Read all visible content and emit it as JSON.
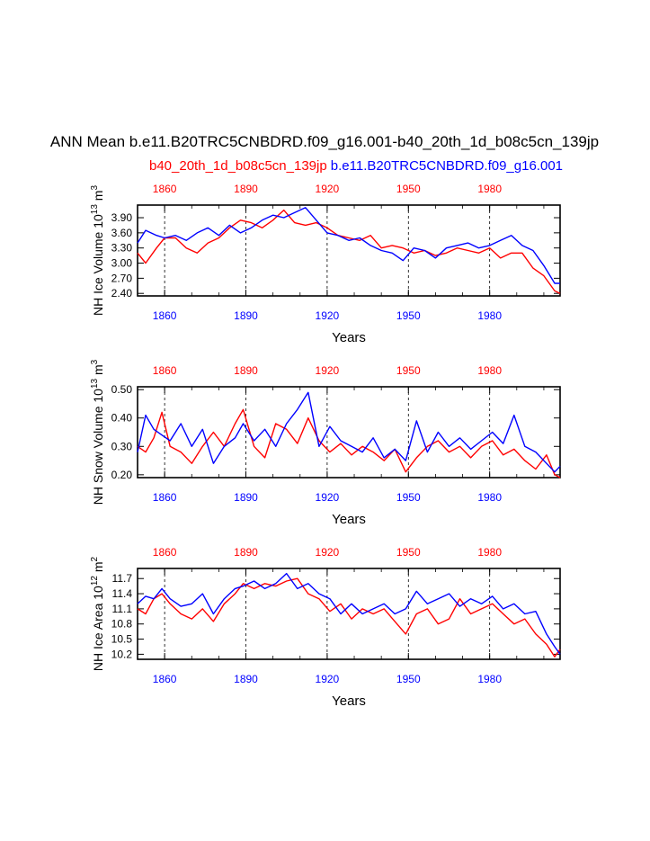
{
  "title": "ANN Mean b.e11.B20TRC5CNBDRD.f09_g16.001-b40_20th_1d_b08c5cn_139jp",
  "legend": {
    "red_label": "b40_20th_1d_b08c5cn_139jp",
    "blue_label": "b.e11.B20TRC5CNBDRD.f09_g16.001"
  },
  "colors": {
    "red": "#ff0000",
    "blue": "#0000ff"
  },
  "chart_data": [
    {
      "type": "line",
      "ylabel": "NH Ice Volume 10",
      "ylabel_exp": "13",
      "ylabel_unit": " m",
      "ylabel_unit_exp": "3",
      "xlabel": "Years",
      "top_axis_labels": [
        "1860",
        "1890",
        "1920",
        "1950",
        "1980"
      ],
      "bottom_axis_labels": [
        "1860",
        "1890",
        "1920",
        "1950",
        "1980"
      ],
      "yticks": [
        "3.90",
        "3.60",
        "3.30",
        "3.00",
        "2.70",
        "2.40"
      ],
      "ylim": [
        2.35,
        4.15
      ],
      "xlim": [
        1850,
        2006
      ],
      "series": [
        {
          "name": "b40_20th_1d_b08c5cn_139jp",
          "color": "red",
          "x": [
            1850,
            1853,
            1857,
            1860,
            1864,
            1868,
            1872,
            1876,
            1880,
            1884,
            1888,
            1892,
            1896,
            1900,
            1904,
            1908,
            1912,
            1916,
            1920,
            1924,
            1928,
            1932,
            1936,
            1940,
            1944,
            1948,
            1952,
            1956,
            1960,
            1964,
            1968,
            1972,
            1976,
            1980,
            1984,
            1988,
            1992,
            1996,
            2000,
            2004,
            2006
          ],
          "y": [
            3.2,
            3.0,
            3.3,
            3.5,
            3.5,
            3.3,
            3.2,
            3.4,
            3.5,
            3.7,
            3.85,
            3.8,
            3.7,
            3.85,
            4.05,
            3.8,
            3.75,
            3.8,
            3.7,
            3.55,
            3.5,
            3.45,
            3.55,
            3.3,
            3.35,
            3.3,
            3.2,
            3.25,
            3.15,
            3.2,
            3.3,
            3.25,
            3.2,
            3.3,
            3.1,
            3.2,
            3.2,
            2.9,
            2.75,
            2.45,
            2.4
          ]
        },
        {
          "name": "b.e11.B20TRC5CNBDRD.f09_g16.001",
          "color": "blue",
          "x": [
            1850,
            1853,
            1857,
            1860,
            1864,
            1868,
            1872,
            1876,
            1880,
            1884,
            1888,
            1892,
            1896,
            1900,
            1904,
            1908,
            1912,
            1916,
            1920,
            1924,
            1928,
            1932,
            1936,
            1940,
            1944,
            1948,
            1952,
            1956,
            1960,
            1964,
            1968,
            1972,
            1976,
            1980,
            1984,
            1988,
            1992,
            1996,
            2000,
            2004,
            2006
          ],
          "y": [
            3.4,
            3.65,
            3.55,
            3.5,
            3.55,
            3.45,
            3.6,
            3.7,
            3.55,
            3.75,
            3.6,
            3.7,
            3.85,
            3.95,
            3.9,
            4.0,
            4.1,
            3.85,
            3.6,
            3.55,
            3.45,
            3.5,
            3.35,
            3.25,
            3.2,
            3.05,
            3.3,
            3.25,
            3.1,
            3.3,
            3.35,
            3.4,
            3.3,
            3.35,
            3.45,
            3.55,
            3.35,
            3.25,
            2.95,
            2.6,
            2.6
          ]
        }
      ]
    },
    {
      "type": "line",
      "ylabel": "NH Snow Volume 10",
      "ylabel_exp": "13",
      "ylabel_unit": " m",
      "ylabel_unit_exp": "3",
      "xlabel": "Years",
      "top_axis_labels": [
        "1860",
        "1890",
        "1920",
        "1950",
        "1980"
      ],
      "bottom_axis_labels": [
        "1860",
        "1890",
        "1920",
        "1950",
        "1980"
      ],
      "yticks": [
        "0.50",
        "0.40",
        "0.30",
        "0.20"
      ],
      "ylim": [
        0.19,
        0.51
      ],
      "xlim": [
        1850,
        2006
      ],
      "series": [
        {
          "name": "b40_20th_1d_b08c5cn_139jp",
          "color": "red",
          "x": [
            1850,
            1853,
            1856,
            1859,
            1862,
            1866,
            1870,
            1874,
            1878,
            1882,
            1886,
            1889,
            1893,
            1897,
            1901,
            1905,
            1909,
            1913,
            1917,
            1921,
            1925,
            1929,
            1933,
            1937,
            1941,
            1945,
            1949,
            1953,
            1957,
            1961,
            1965,
            1969,
            1973,
            1977,
            1981,
            1985,
            1989,
            1993,
            1997,
            2001,
            2004,
            2006
          ],
          "y": [
            0.3,
            0.28,
            0.33,
            0.42,
            0.3,
            0.28,
            0.24,
            0.3,
            0.35,
            0.3,
            0.38,
            0.43,
            0.3,
            0.26,
            0.38,
            0.36,
            0.31,
            0.4,
            0.32,
            0.28,
            0.31,
            0.27,
            0.3,
            0.28,
            0.25,
            0.29,
            0.21,
            0.26,
            0.3,
            0.32,
            0.28,
            0.3,
            0.26,
            0.3,
            0.32,
            0.27,
            0.29,
            0.25,
            0.22,
            0.27,
            0.2,
            0.19
          ]
        },
        {
          "name": "b.e11.B20TRC5CNBDRD.f09_g16.001",
          "color": "blue",
          "x": [
            1850,
            1853,
            1856,
            1859,
            1862,
            1866,
            1870,
            1874,
            1878,
            1882,
            1886,
            1889,
            1893,
            1897,
            1901,
            1905,
            1909,
            1913,
            1917,
            1921,
            1925,
            1929,
            1933,
            1937,
            1941,
            1945,
            1949,
            1953,
            1957,
            1961,
            1965,
            1969,
            1973,
            1977,
            1981,
            1985,
            1989,
            1993,
            1997,
            2001,
            2004,
            2006
          ],
          "y": [
            0.28,
            0.41,
            0.36,
            0.34,
            0.32,
            0.38,
            0.3,
            0.36,
            0.24,
            0.3,
            0.33,
            0.38,
            0.32,
            0.36,
            0.3,
            0.38,
            0.43,
            0.49,
            0.3,
            0.37,
            0.32,
            0.3,
            0.28,
            0.33,
            0.26,
            0.29,
            0.25,
            0.39,
            0.28,
            0.35,
            0.3,
            0.33,
            0.29,
            0.32,
            0.35,
            0.31,
            0.41,
            0.3,
            0.28,
            0.24,
            0.21,
            0.23
          ]
        }
      ]
    },
    {
      "type": "line",
      "ylabel": "NH Ice Area 10",
      "ylabel_exp": "12",
      "ylabel_unit": " m",
      "ylabel_unit_exp": "2",
      "xlabel": "Years",
      "top_axis_labels": [
        "1860",
        "1890",
        "1920",
        "1950",
        "1980"
      ],
      "bottom_axis_labels": [
        "1860",
        "1890",
        "1920",
        "1950",
        "1980"
      ],
      "yticks": [
        "11.7",
        "11.4",
        "11.1",
        "10.8",
        "10.5",
        "10.2"
      ],
      "ylim": [
        10.1,
        11.9
      ],
      "xlim": [
        1850,
        2006
      ],
      "series": [
        {
          "name": "b40_20th_1d_b08c5cn_139jp",
          "color": "red",
          "x": [
            1850,
            1853,
            1856,
            1859,
            1862,
            1866,
            1870,
            1874,
            1878,
            1882,
            1886,
            1889,
            1893,
            1897,
            1901,
            1905,
            1909,
            1913,
            1917,
            1921,
            1925,
            1929,
            1933,
            1937,
            1941,
            1945,
            1949,
            1953,
            1957,
            1961,
            1965,
            1969,
            1973,
            1977,
            1981,
            1985,
            1989,
            1993,
            1997,
            2001,
            2004,
            2006
          ],
          "y": [
            11.1,
            11.0,
            11.3,
            11.4,
            11.2,
            11.0,
            10.9,
            11.1,
            10.85,
            11.2,
            11.4,
            11.6,
            11.5,
            11.6,
            11.55,
            11.65,
            11.7,
            11.4,
            11.3,
            11.05,
            11.2,
            10.9,
            11.1,
            11.0,
            11.1,
            10.85,
            10.6,
            11.0,
            11.1,
            10.8,
            10.9,
            11.3,
            11.0,
            11.1,
            11.2,
            11.0,
            10.8,
            10.9,
            10.6,
            10.4,
            10.15,
            10.3
          ]
        },
        {
          "name": "b.e11.B20TRC5CNBDRD.f09_g16.001",
          "color": "blue",
          "x": [
            1850,
            1853,
            1856,
            1859,
            1862,
            1866,
            1870,
            1874,
            1878,
            1882,
            1886,
            1889,
            1893,
            1897,
            1901,
            1905,
            1909,
            1913,
            1917,
            1921,
            1925,
            1929,
            1933,
            1937,
            1941,
            1945,
            1949,
            1953,
            1957,
            1961,
            1965,
            1969,
            1973,
            1977,
            1981,
            1985,
            1989,
            1993,
            1997,
            2001,
            2004,
            2006
          ],
          "y": [
            11.2,
            11.35,
            11.3,
            11.5,
            11.3,
            11.15,
            11.2,
            11.4,
            11.0,
            11.3,
            11.5,
            11.55,
            11.65,
            11.5,
            11.6,
            11.8,
            11.5,
            11.6,
            11.4,
            11.3,
            11.0,
            11.2,
            11.0,
            11.1,
            11.2,
            11.0,
            11.1,
            11.45,
            11.2,
            11.3,
            11.4,
            11.15,
            11.3,
            11.2,
            11.35,
            11.1,
            11.2,
            11.0,
            11.05,
            10.6,
            10.35,
            10.2
          ]
        }
      ]
    }
  ]
}
